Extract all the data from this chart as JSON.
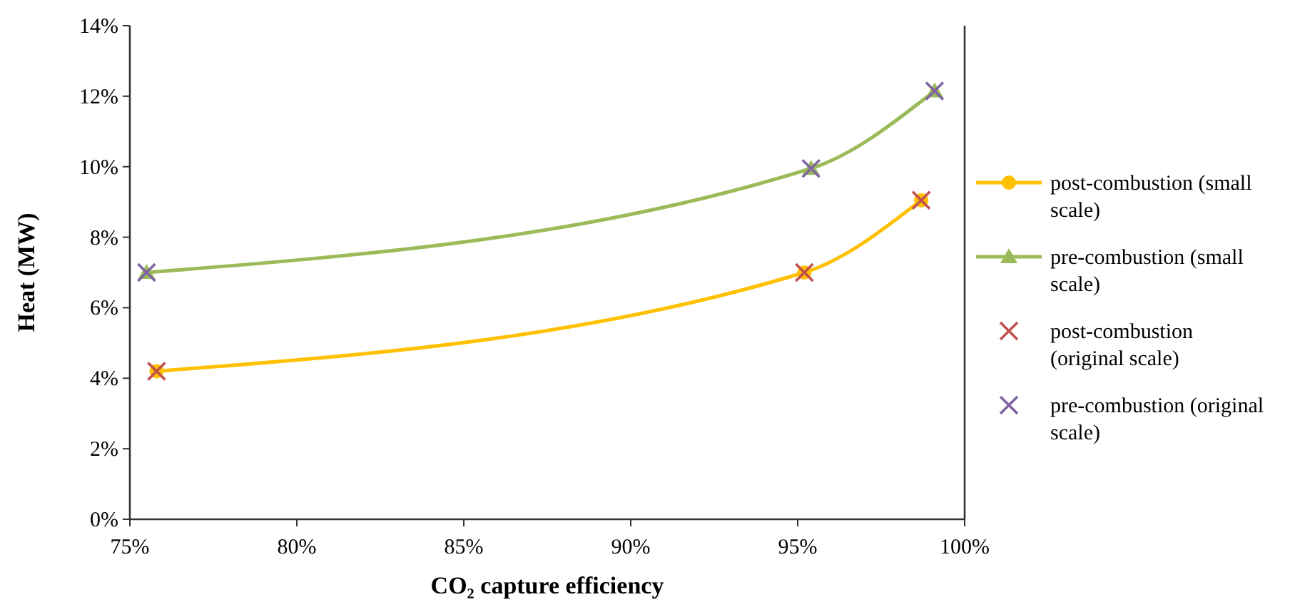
{
  "chart_data": {
    "type": "line",
    "xlabel": "CO₂ capture efficiency",
    "ylabel": "Heat (MW)",
    "xlim": [
      75,
      100
    ],
    "xticks": [
      {
        "value": 75,
        "label": "75%"
      },
      {
        "value": 80,
        "label": "80%"
      },
      {
        "value": 85,
        "label": "85%"
      },
      {
        "value": 90,
        "label": "90%"
      },
      {
        "value": 95,
        "label": "95%"
      },
      {
        "value": 100,
        "label": "100%"
      }
    ],
    "ylim": [
      0,
      14
    ],
    "yticks": [
      {
        "value": 0,
        "label": "0%"
      },
      {
        "value": 2,
        "label": "2%"
      },
      {
        "value": 4,
        "label": "4%"
      },
      {
        "value": 6,
        "label": "6%"
      },
      {
        "value": 8,
        "label": "8%"
      },
      {
        "value": 10,
        "label": "10%"
      },
      {
        "value": 12,
        "label": "12%"
      },
      {
        "value": 14,
        "label": "14%"
      }
    ],
    "grid": false,
    "legend": "right",
    "series": [
      {
        "name": "post-combustion (small scale)",
        "marker": "circle",
        "color": "#ffc000",
        "x": [
          75.8,
          95.2,
          98.7
        ],
        "values": [
          4.2,
          7.0,
          9.05
        ]
      },
      {
        "name": "pre-combustion (small scale)",
        "marker": "triangle",
        "color": "#9bbb59",
        "x": [
          75.5,
          95.4,
          99.1
        ],
        "values": [
          7.0,
          9.95,
          12.15
        ]
      },
      {
        "name": "post-combustion (original scale)",
        "type": "scatter",
        "marker": "cross",
        "color": "#c0504d",
        "x": [
          75.8,
          95.2,
          98.7
        ],
        "values": [
          4.2,
          7.0,
          9.05
        ]
      },
      {
        "name": "pre-combustion (original scale)",
        "type": "scatter",
        "marker": "cross",
        "color": "#8064a2",
        "x": [
          75.5,
          95.4,
          99.1
        ],
        "values": [
          7.0,
          9.95,
          12.15
        ]
      }
    ]
  }
}
